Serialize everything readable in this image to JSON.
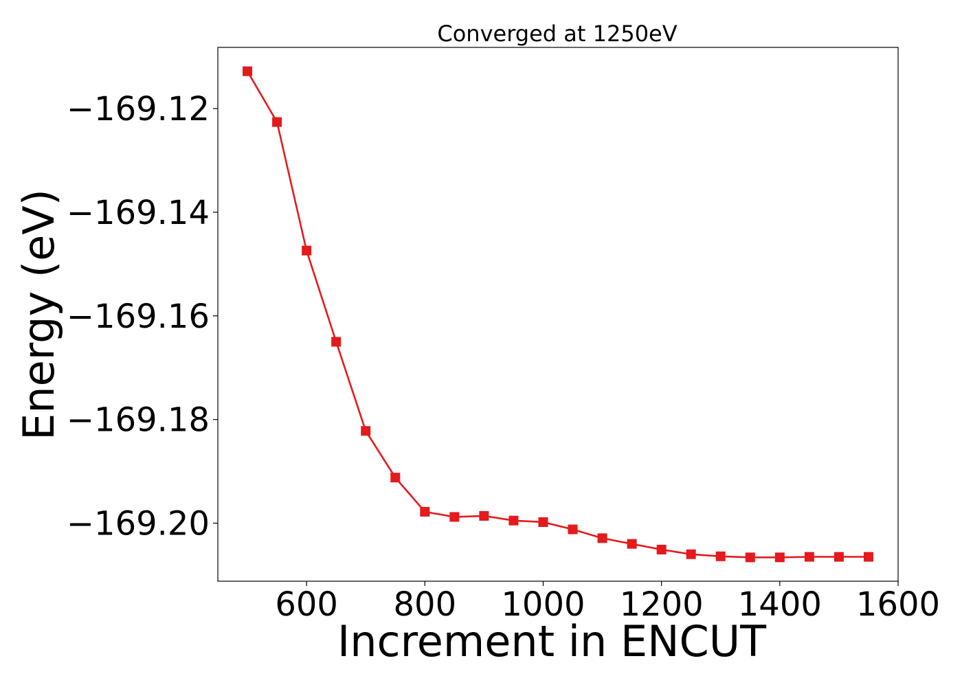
{
  "chart_data": {
    "type": "line",
    "title": "Converged at 1250eV",
    "xlabel": "Increment in ENCUT",
    "ylabel": "Energy (eV)",
    "xlim": [
      450,
      1600
    ],
    "ylim": [
      -169.2112,
      -169.1082
    ],
    "xticks": [
      600,
      800,
      1000,
      1200,
      1400,
      1600
    ],
    "xtick_labels": [
      "600",
      "800",
      "1000",
      "1200",
      "1400",
      "1600"
    ],
    "yticks": [
      -169.12,
      -169.14,
      -169.16,
      -169.18,
      -169.2
    ],
    "ytick_labels": [
      "−169.12",
      "−169.14",
      "−169.16",
      "−169.18",
      "−169.20"
    ],
    "grid": false,
    "series": [
      {
        "color": "#e41a1c",
        "marker": "square",
        "x": [
          500,
          550,
          600,
          650,
          700,
          750,
          800,
          850,
          900,
          950,
          1000,
          1050,
          1100,
          1150,
          1200,
          1250,
          1300,
          1350,
          1400,
          1450,
          1500,
          1550
        ],
        "y": [
          -169.1128,
          -169.1226,
          -169.1474,
          -169.165,
          -169.1822,
          -169.1912,
          -169.1978,
          -169.1988,
          -169.1986,
          -169.1995,
          -169.1998,
          -169.2012,
          -169.2029,
          -169.204,
          -169.2051,
          -169.206,
          -169.2064,
          -169.2066,
          -169.2066,
          -169.2065,
          -169.2065,
          -169.2065
        ]
      }
    ]
  }
}
